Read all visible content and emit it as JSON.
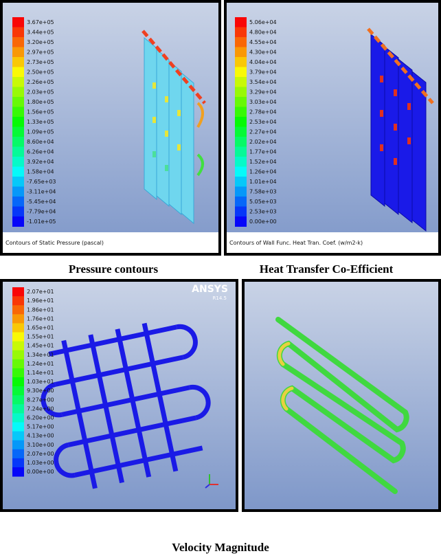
{
  "panels": [
    {
      "legend": [
        "3.67e+05",
        "3.44e+05",
        "3.20e+05",
        "2.97e+05",
        "2.73e+05",
        "2.50e+05",
        "2.26e+05",
        "2.03e+05",
        "1.80e+05",
        "1.56e+05",
        "1.33e+05",
        "1.09e+05",
        "8.60e+04",
        "6.26e+04",
        "3.92e+04",
        "1.58e+04",
        "-7.65e+03",
        "-3.11e+04",
        "-5.45e+04",
        "-7.79e+04",
        "-1.01e+05"
      ],
      "footer": "Contours of Static Pressure (pascal)"
    },
    {
      "legend": [
        "5.06e+04",
        "4.80e+04",
        "4.55e+04",
        "4.30e+04",
        "4.04e+04",
        "3.79e+04",
        "3.54e+04",
        "3.29e+04",
        "3.03e+04",
        "2.78e+04",
        "2.53e+04",
        "2.27e+04",
        "2.02e+04",
        "1.77e+04",
        "1.52e+04",
        "1.26e+04",
        "1.01e+04",
        "7.58e+03",
        "5.05e+03",
        "2.53e+03",
        "0.00e+00"
      ],
      "footer": "Contours of Wall Func. Heat Tran. Coef. (w/m2-k)"
    },
    {
      "legend": [
        "2.07e+01",
        "1.96e+01",
        "1.86e+01",
        "1.76e+01",
        "1.65e+01",
        "1.55e+01",
        "1.45e+01",
        "1.34e+01",
        "1.24e+01",
        "1.14e+01",
        "1.03e+01",
        "9.30e+00",
        "8.27e+00",
        "7.24e+00",
        "6.20e+00",
        "5.17e+00",
        "4.13e+00",
        "3.10e+00",
        "2.07e+00",
        "1.03e+00",
        "0.00e+00"
      ],
      "logo": {
        "brand": "ANSYS",
        "version": "R14.5"
      }
    }
  ],
  "captions": [
    "Pressure contours",
    "Heat Transfer Co-Efficient",
    "Velocity Magnitude"
  ]
}
